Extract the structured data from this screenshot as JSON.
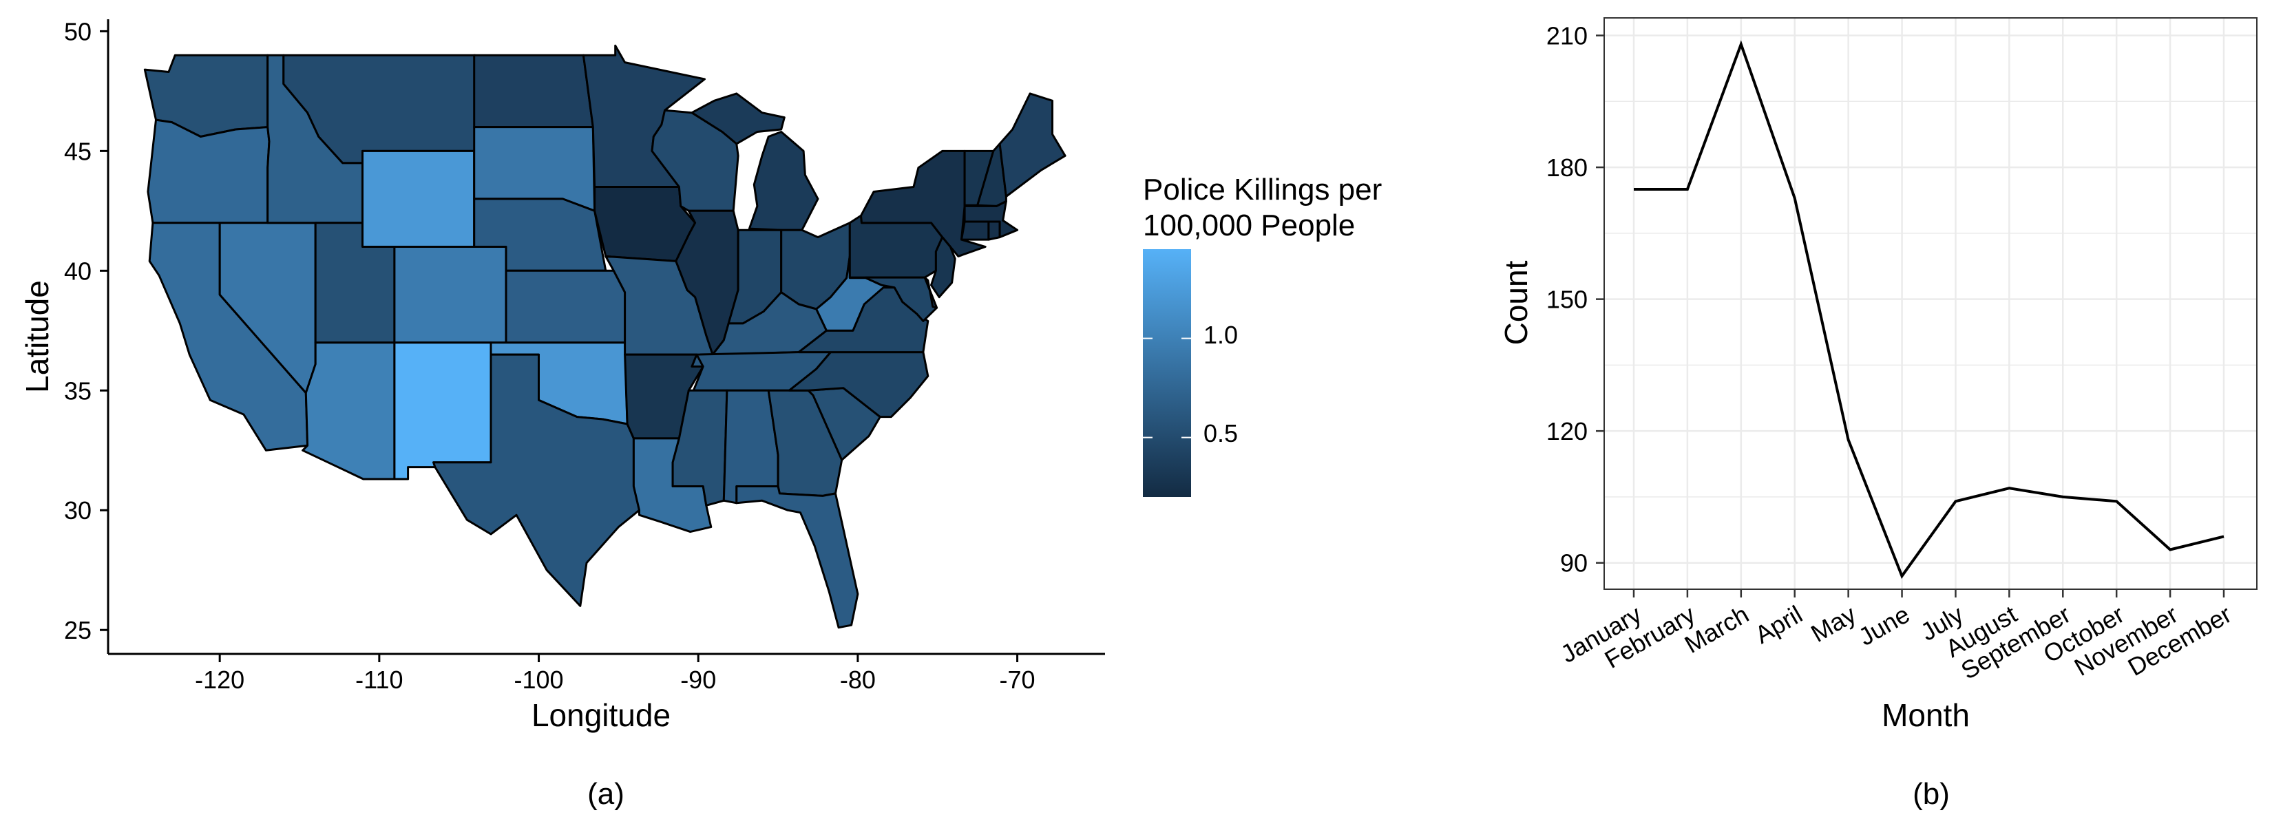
{
  "panels": {
    "a": {
      "caption": "(a)",
      "x_axis_title": "Longitude",
      "y_axis_title": "Latitude",
      "x_ticks": [
        "-120",
        "-110",
        "-100",
        "-90",
        "-80",
        "-70"
      ],
      "y_ticks": [
        "25",
        "30",
        "35",
        "40",
        "45",
        "50"
      ],
      "legend": {
        "title_line1": "Police Killings per",
        "title_line2": "100,000 People",
        "ticks": [
          "0.5",
          "1.0"
        ]
      }
    },
    "b": {
      "caption": "(b)",
      "x_axis_title": "Month",
      "y_axis_title": "Count"
    }
  },
  "colors": {
    "low": "#132B43",
    "high": "#56B1F7",
    "border": "#000000",
    "grid": "#EBEBEB",
    "line": "#000000"
  },
  "chart_data": [
    {
      "type": "heatmap",
      "subtype": "choropleth",
      "xlabel": "Longitude",
      "ylabel": "Latitude",
      "xlim": [
        -127,
        -64.5
      ],
      "ylim": [
        24,
        50.5
      ],
      "xticks": [
        -120,
        -110,
        -100,
        -90,
        -80,
        -70
      ],
      "yticks": [
        25,
        30,
        35,
        40,
        45,
        50
      ],
      "legend": {
        "title": "Police Killings per 100,000 People",
        "placement": "right",
        "scale": [
          0.2,
          1.45
        ],
        "ticks": [
          0.5,
          1.0
        ]
      },
      "grid": false,
      "regions": [
        {
          "state": "WA",
          "value": 0.55
        },
        {
          "state": "OR",
          "value": 0.78
        },
        {
          "state": "CA",
          "value": 0.82
        },
        {
          "state": "NV",
          "value": 0.9
        },
        {
          "state": "ID",
          "value": 0.7
        },
        {
          "state": "MT",
          "value": 0.5
        },
        {
          "state": "WY",
          "value": 1.22
        },
        {
          "state": "UT",
          "value": 0.55
        },
        {
          "state": "CO",
          "value": 0.95
        },
        {
          "state": "AZ",
          "value": 1.0
        },
        {
          "state": "NM",
          "value": 1.45
        },
        {
          "state": "ND",
          "value": 0.4
        },
        {
          "state": "SD",
          "value": 0.9
        },
        {
          "state": "NE",
          "value": 0.65
        },
        {
          "state": "KS",
          "value": 0.68
        },
        {
          "state": "OK",
          "value": 1.2
        },
        {
          "state": "TX",
          "value": 0.6
        },
        {
          "state": "MN",
          "value": 0.4
        },
        {
          "state": "IA",
          "value": 0.2
        },
        {
          "state": "MO",
          "value": 0.62
        },
        {
          "state": "AR",
          "value": 0.3
        },
        {
          "state": "LA",
          "value": 0.85
        },
        {
          "state": "WI",
          "value": 0.5
        },
        {
          "state": "IL",
          "value": 0.25
        },
        {
          "state": "MI",
          "value": 0.35
        },
        {
          "state": "IN",
          "value": 0.45
        },
        {
          "state": "OH",
          "value": 0.45
        },
        {
          "state": "KY",
          "value": 0.62
        },
        {
          "state": "TN",
          "value": 0.6
        },
        {
          "state": "MS",
          "value": 0.55
        },
        {
          "state": "AL",
          "value": 0.65
        },
        {
          "state": "GA",
          "value": 0.55
        },
        {
          "state": "FL",
          "value": 0.65
        },
        {
          "state": "SC",
          "value": 0.55
        },
        {
          "state": "NC",
          "value": 0.45
        },
        {
          "state": "VA",
          "value": 0.45
        },
        {
          "state": "WV",
          "value": 0.95
        },
        {
          "state": "PA",
          "value": 0.28
        },
        {
          "state": "NY",
          "value": 0.25
        },
        {
          "state": "NJ",
          "value": 0.3
        },
        {
          "state": "MD",
          "value": 0.45
        },
        {
          "state": "DE",
          "value": 0.4
        },
        {
          "state": "CT",
          "value": 0.25
        },
        {
          "state": "RI",
          "value": 0.25
        },
        {
          "state": "MA",
          "value": 0.25
        },
        {
          "state": "VT",
          "value": 0.3
        },
        {
          "state": "NH",
          "value": 0.3
        },
        {
          "state": "ME",
          "value": 0.4
        }
      ]
    },
    {
      "type": "line",
      "xlabel": "Month",
      "ylabel": "Count",
      "categories": [
        "January",
        "February",
        "March",
        "April",
        "May",
        "June",
        "July",
        "August",
        "September",
        "October",
        "November",
        "December"
      ],
      "values": [
        175,
        175,
        208,
        173,
        118,
        87,
        104,
        107,
        105,
        104,
        93,
        96
      ],
      "ylim": [
        84,
        214
      ],
      "yticks": [
        90,
        120,
        150,
        180,
        210
      ],
      "grid": true,
      "legend": "none"
    }
  ]
}
